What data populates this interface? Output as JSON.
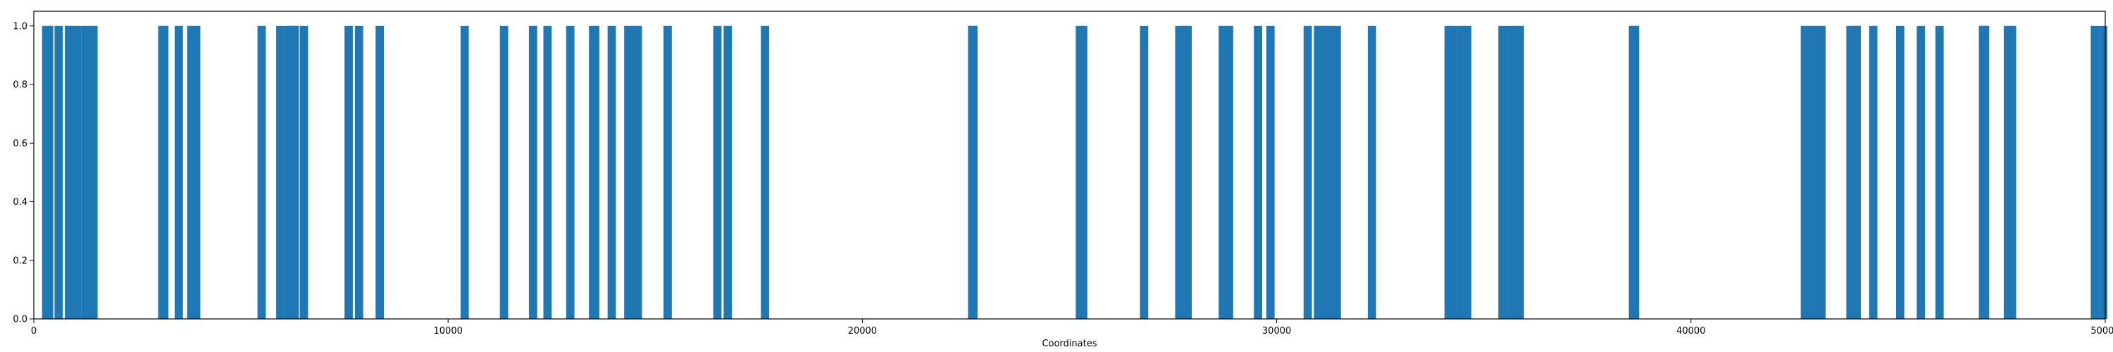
{
  "chart_data": {
    "type": "bar",
    "title": "",
    "xlabel": "Coordinates",
    "ylabel": "",
    "xlim": [
      0,
      50000
    ],
    "ylim": [
      0.0,
      1.05
    ],
    "x_ticks": [
      0,
      10000,
      20000,
      30000,
      40000,
      50000
    ],
    "y_ticks": [
      0.0,
      0.2,
      0.4,
      0.6,
      0.8,
      1.0
    ],
    "x_tick_labels": [
      "0",
      "10000",
      "20000",
      "30000",
      "40000",
      "50000"
    ],
    "y_tick_labels": [
      "0.0",
      "0.2",
      "0.4",
      "0.6",
      "0.8",
      "1.0"
    ],
    "grid": false,
    "bar_color": "#1f77b4",
    "bar_value": 1.0,
    "positions": [
      300,
      370,
      600,
      850,
      880,
      1050,
      1250,
      1320,
      1440,
      3100,
      3150,
      3500,
      3800,
      3920,
      5500,
      5950,
      6150,
      6250,
      6300,
      6520,
      7600,
      7850,
      8350,
      10400,
      11350,
      12050,
      12400,
      12950,
      13500,
      13550,
      13950,
      14350,
      14520,
      14580,
      15300,
      16500,
      16750,
      17650,
      22650,
      22680,
      25250,
      25330,
      26800,
      27650,
      27750,
      27850,
      28700,
      28850,
      29550,
      29850,
      30750,
      31000,
      31080,
      31200,
      31300,
      31450,
      32300,
      34150,
      34250,
      34450,
      34600,
      35450,
      35650,
      35800,
      35870,
      38600,
      38650,
      42750,
      42850,
      43000,
      43150,
      43850,
      43950,
      44000,
      44400,
      45050,
      45550,
      46000,
      47050,
      47100,
      47650,
      47750,
      49750,
      49950
    ]
  }
}
